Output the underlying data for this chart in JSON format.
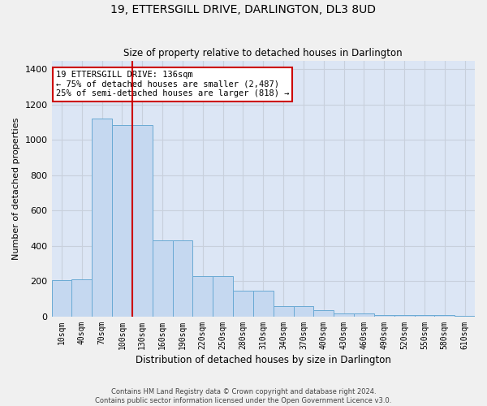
{
  "title": "19, ETTERSGILL DRIVE, DARLINGTON, DL3 8UD",
  "subtitle": "Size of property relative to detached houses in Darlington",
  "xlabel": "Distribution of detached houses by size in Darlington",
  "ylabel": "Number of detached properties",
  "bar_color": "#c5d8f0",
  "bar_edge_color": "#6aaad4",
  "background_color": "#dce6f5",
  "grid_color": "#c8d0dc",
  "fig_bg_color": "#f0f0f0",
  "categories": [
    "10sqm",
    "40sqm",
    "70sqm",
    "100sqm",
    "130sqm",
    "160sqm",
    "190sqm",
    "220sqm",
    "250sqm",
    "280sqm",
    "310sqm",
    "340sqm",
    "370sqm",
    "400sqm",
    "430sqm",
    "460sqm",
    "490sqm",
    "520sqm",
    "550sqm",
    "580sqm",
    "610sqm"
  ],
  "values": [
    205,
    210,
    1120,
    1085,
    1085,
    430,
    430,
    230,
    230,
    145,
    145,
    58,
    58,
    35,
    20,
    20,
    10,
    10,
    10,
    10,
    5
  ],
  "ylim": [
    0,
    1450
  ],
  "yticks": [
    0,
    200,
    400,
    600,
    800,
    1000,
    1200,
    1400
  ],
  "vline_x": 3.5,
  "vline_color": "#cc0000",
  "annotation_text": "19 ETTERSGILL DRIVE: 136sqm\n← 75% of detached houses are smaller (2,487)\n25% of semi-detached houses are larger (818) →",
  "annotation_box_color": "#ffffff",
  "annotation_box_edge_color": "#cc0000",
  "footer_line1": "Contains HM Land Registry data © Crown copyright and database right 2024.",
  "footer_line2": "Contains public sector information licensed under the Open Government Licence v3.0."
}
